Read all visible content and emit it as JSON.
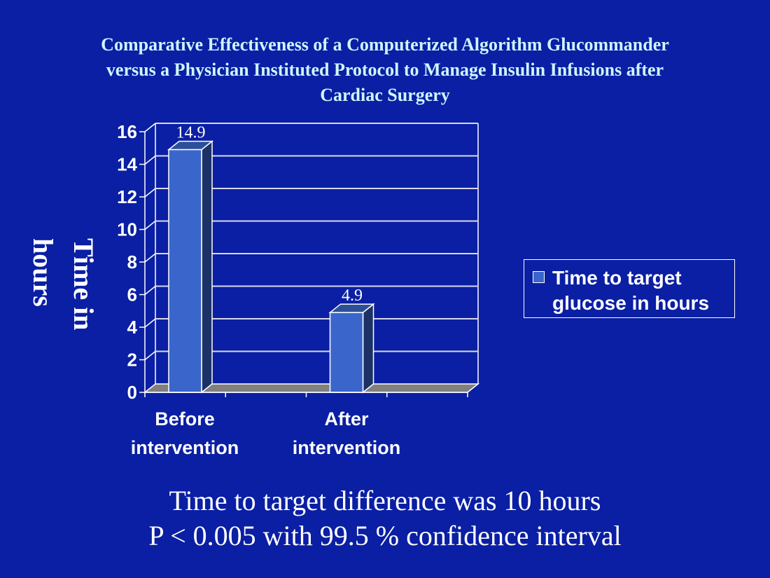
{
  "slide": {
    "background": "#0a1fa3",
    "title_lines": [
      "Comparative Effectiveness of a Computerized Algorithm Glucommander",
      "versus a Physician Instituted Protocol to Manage Insulin Infusions after",
      "Cardiac Surgery"
    ],
    "footer_lines": [
      "Time to target difference was 10 hours",
      "P < 0.005 with 99.5 % confidence interval"
    ]
  },
  "chart_data": {
    "type": "bar",
    "title": "Comparative Effectiveness of a Computerized Algorithm Glucommander versus a Physician Instituted Protocol to Manage Insulin Infusions after Cardiac Surgery",
    "categories": [
      "Before intervention",
      "After intervention"
    ],
    "category_lines": [
      [
        "Before",
        "intervention"
      ],
      [
        "After",
        "intervention"
      ]
    ],
    "series": [
      {
        "name": "Time to target glucose in hours",
        "values": [
          14.9,
          4.9
        ],
        "color": "#3a66cc"
      }
    ],
    "data_labels": [
      "14.9",
      "4.9"
    ],
    "xlabel": "",
    "ylabel": "Time in hours",
    "ylabel_lines": [
      "Time in",
      "hours"
    ],
    "ylim": [
      0,
      16
    ],
    "yticks": [
      0,
      2,
      4,
      6,
      8,
      10,
      12,
      14,
      16
    ],
    "ytick_labels": [
      "0",
      "2",
      "4",
      "6",
      "8",
      "10",
      "12",
      "14",
      "16"
    ],
    "grid": true,
    "style": "3d-column",
    "legend": {
      "position": "right",
      "entries": [
        "Time to target glucose in hours"
      ],
      "entry_lines": [
        "Time to target",
        "glucose in hours"
      ]
    }
  }
}
